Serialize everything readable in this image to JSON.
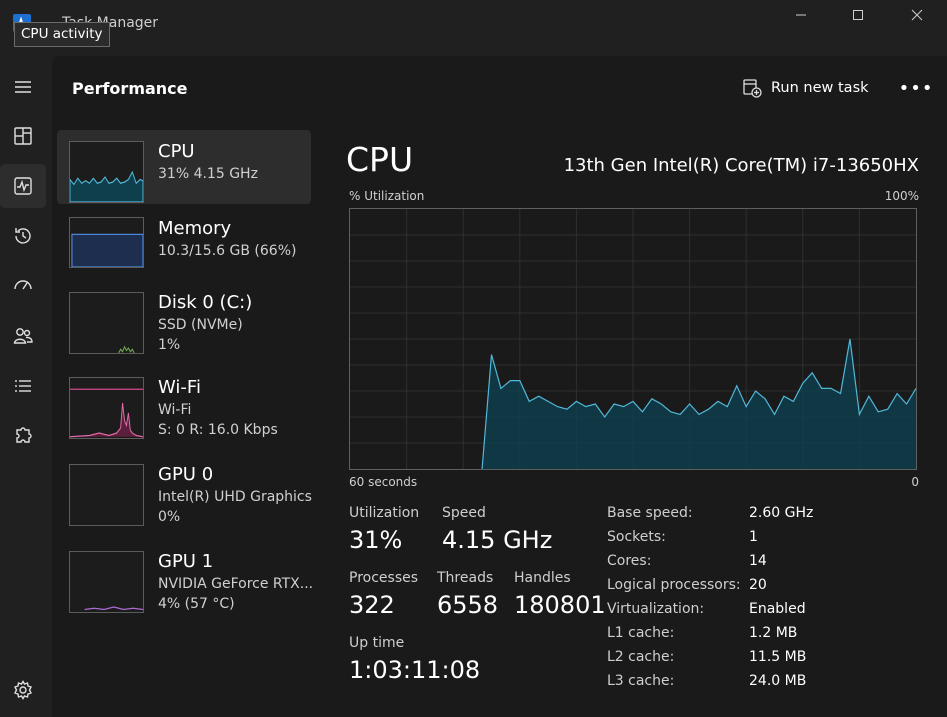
{
  "window": {
    "title": "Task Manager",
    "tooltip": "CPU activity"
  },
  "header": {
    "title": "Performance",
    "run_task_label": "Run new task",
    "more_label": "•••"
  },
  "sidebar": {
    "items": [
      "menu-icon",
      "processes-icon",
      "performance-icon",
      "app-history-icon",
      "startup-apps-icon",
      "users-icon",
      "details-icon",
      "services-icon",
      "settings-icon"
    ],
    "active": "performance-icon"
  },
  "resources": [
    {
      "name": "CPU",
      "sub1": "31%  4.15 GHz",
      "sub2": ""
    },
    {
      "name": "Memory",
      "sub1": "10.3/15.6 GB (66%)",
      "sub2": ""
    },
    {
      "name": "Disk 0 (C:)",
      "sub1": "SSD (NVMe)",
      "sub2": "1%"
    },
    {
      "name": "Wi-Fi",
      "sub1": "Wi-Fi",
      "sub2": "S: 0  R: 16.0 Kbps"
    },
    {
      "name": "GPU 0",
      "sub1": "Intel(R) UHD Graphics",
      "sub2": "0%"
    },
    {
      "name": "GPU 1",
      "sub1": "NVIDIA GeForce RTX...",
      "sub2": "4% (57 °C)"
    }
  ],
  "detail": {
    "title": "CPU",
    "model": "13th Gen Intel(R) Core(TM) i7-13650HX",
    "graph_label": "% Utilization",
    "graph_max": "100%",
    "graph_time": "60 seconds",
    "graph_zero": "0",
    "stats": {
      "utilization_label": "Utilization",
      "utilization": "31%",
      "speed_label": "Speed",
      "speed": "4.15 GHz",
      "processes_label": "Processes",
      "processes": "322",
      "threads_label": "Threads",
      "threads": "6558",
      "handles_label": "Handles",
      "handles": "180801",
      "uptime_label": "Up time",
      "uptime": "1:03:11:08"
    },
    "specs": [
      {
        "label": "Base speed:",
        "value": "2.60 GHz"
      },
      {
        "label": "Sockets:",
        "value": "1"
      },
      {
        "label": "Cores:",
        "value": "14"
      },
      {
        "label": "Logical processors:",
        "value": "20"
      },
      {
        "label": "Virtualization:",
        "value": "Enabled"
      },
      {
        "label": "L1 cache:",
        "value": "1.2 MB"
      },
      {
        "label": "L2 cache:",
        "value": "11.5 MB"
      },
      {
        "label": "L3 cache:",
        "value": "24.0 MB"
      }
    ]
  },
  "chart_data": {
    "type": "area",
    "ylim": [
      0,
      100
    ],
    "x_seconds_ago": [
      60,
      59,
      58,
      57,
      56,
      55,
      54,
      53,
      52,
      51,
      50,
      49,
      48,
      47,
      46,
      45,
      44,
      43,
      42,
      41,
      40,
      39,
      38,
      37,
      36,
      35,
      34,
      33,
      32,
      31,
      30,
      29,
      28,
      27,
      26,
      25,
      24,
      23,
      22,
      21,
      20,
      19,
      18,
      17,
      16,
      15,
      14,
      13,
      12,
      11,
      10,
      9,
      8,
      7,
      6,
      5,
      4,
      3,
      2,
      1,
      0
    ],
    "values": [
      0,
      0,
      0,
      0,
      0,
      0,
      0,
      0,
      0,
      0,
      0,
      0,
      0,
      0,
      0,
      44,
      31,
      34,
      34,
      26,
      28,
      26,
      24,
      23,
      26,
      24,
      25,
      20,
      25,
      24,
      26,
      22,
      27,
      25,
      22,
      21,
      25,
      21,
      23,
      26,
      24,
      32,
      24,
      30,
      27,
      21,
      28,
      26,
      33,
      37,
      31,
      31,
      29,
      50,
      21,
      28,
      22,
      23,
      29,
      25,
      31
    ],
    "colors": {
      "line": "#52b7d8",
      "fill": "#0f3e4c",
      "grid": "#2f2f2f"
    }
  }
}
